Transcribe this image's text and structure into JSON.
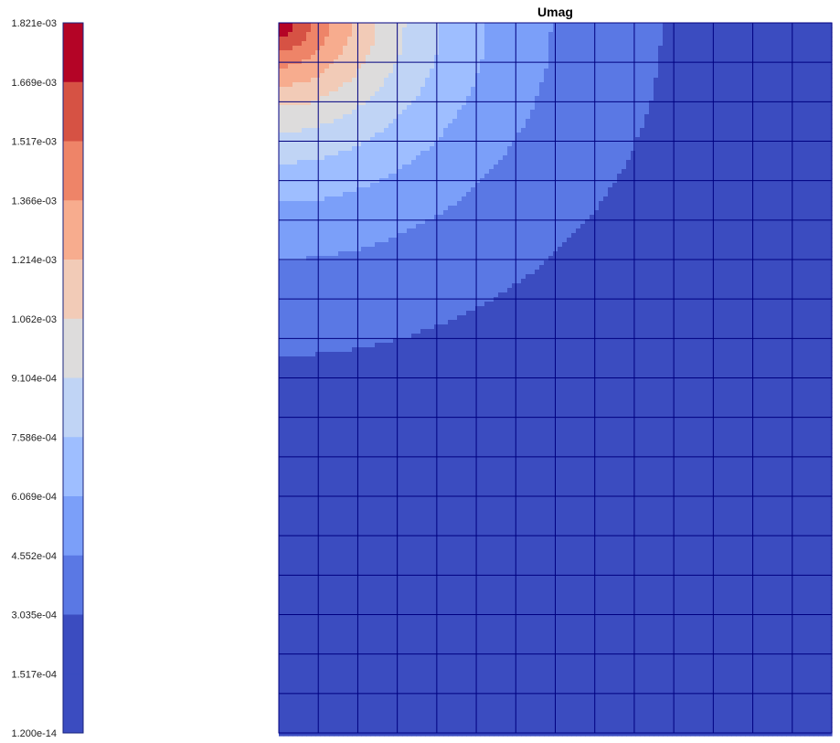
{
  "chart_data": {
    "type": "heatmap",
    "title": "Umag",
    "colorbar": {
      "position": "left",
      "tick_labels": [
        "1.821e-03",
        "1.669e-03",
        "1.517e-03",
        "1.366e-03",
        "1.214e-03",
        "1.062e-03",
        "9.104e-04",
        "7.586e-04",
        "6.069e-04",
        "4.552e-04",
        "3.035e-04",
        "1.517e-04",
        "1.200e-14"
      ],
      "min": 1.2e-14,
      "max": 0.001821,
      "levels": 12,
      "colors": [
        "#3b4cc0",
        "#5a78e4",
        "#7b9ff9",
        "#9ebeff",
        "#c0d4f5",
        "#dddcdc",
        "#f2cbb7",
        "#f7ac8e",
        "#ee8468",
        "#d65244",
        "#b40426"
      ]
    },
    "mesh": {
      "columns": 14,
      "rows": 18,
      "line_color": "#000080"
    },
    "field": {
      "description_of_values": "magnitude of displacement; max at top-left corner",
      "x_range": [
        0,
        14
      ],
      "y_range": [
        0,
        18
      ]
    }
  }
}
